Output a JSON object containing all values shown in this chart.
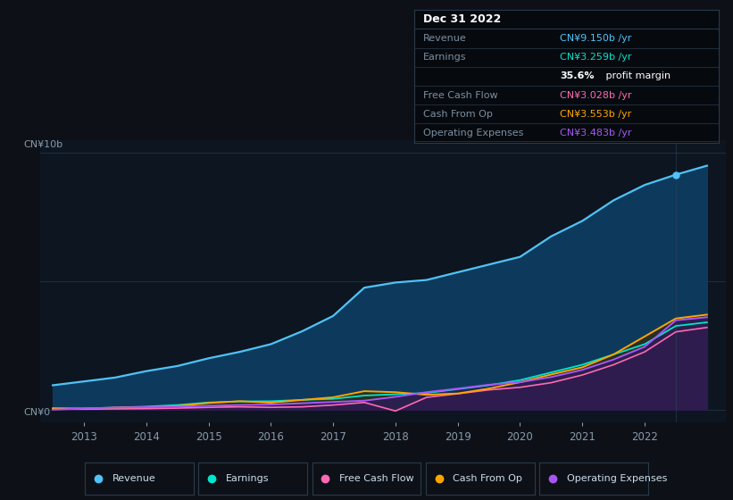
{
  "bg_color": "#0d1117",
  "plot_bg_color": "#0d1520",
  "years": [
    2012.5,
    2013.0,
    2013.5,
    2014.0,
    2014.5,
    2015.0,
    2015.5,
    2016.0,
    2016.5,
    2017.0,
    2017.5,
    2018.0,
    2018.5,
    2019.0,
    2019.5,
    2020.0,
    2020.5,
    2021.0,
    2021.5,
    2022.0,
    2022.5,
    2023.0
  ],
  "revenue": [
    0.95,
    1.1,
    1.25,
    1.5,
    1.7,
    2.0,
    2.25,
    2.55,
    3.05,
    3.65,
    4.75,
    4.95,
    5.05,
    5.35,
    5.65,
    5.95,
    6.75,
    7.35,
    8.15,
    8.75,
    9.15,
    9.5
  ],
  "earnings": [
    0.05,
    0.05,
    0.08,
    0.12,
    0.18,
    0.28,
    0.32,
    0.33,
    0.38,
    0.42,
    0.55,
    0.6,
    0.65,
    0.8,
    0.95,
    1.15,
    1.45,
    1.75,
    2.15,
    2.55,
    3.26,
    3.4
  ],
  "free_cash_flow": [
    0.02,
    0.02,
    0.03,
    0.04,
    0.06,
    0.09,
    0.11,
    0.09,
    0.11,
    0.18,
    0.28,
    -0.05,
    0.48,
    0.62,
    0.77,
    0.87,
    1.05,
    1.35,
    1.75,
    2.25,
    3.03,
    3.2
  ],
  "cash_from_op": [
    0.05,
    0.03,
    0.08,
    0.1,
    0.14,
    0.26,
    0.33,
    0.27,
    0.38,
    0.48,
    0.72,
    0.68,
    0.58,
    0.63,
    0.82,
    1.07,
    1.37,
    1.65,
    2.15,
    2.85,
    3.55,
    3.7
  ],
  "op_expenses": [
    0.0,
    0.05,
    0.08,
    0.1,
    0.12,
    0.15,
    0.18,
    0.2,
    0.25,
    0.3,
    0.35,
    0.5,
    0.68,
    0.82,
    0.97,
    1.07,
    1.27,
    1.55,
    1.95,
    2.45,
    3.48,
    3.6
  ],
  "revenue_color": "#4fc3f7",
  "earnings_color": "#00e5cc",
  "fcf_color": "#ff69b4",
  "cash_color": "#ffa500",
  "opex_color": "#a855f7",
  "xlim": [
    2012.3,
    2023.3
  ],
  "ylim": [
    -0.5,
    10.5
  ],
  "xticks": [
    2013,
    2014,
    2015,
    2016,
    2017,
    2018,
    2019,
    2020,
    2021,
    2022
  ],
  "ylabel": "CN¥10b",
  "y0label": "CN¥0",
  "infobox": {
    "date": "Dec 31 2022",
    "rows": [
      {
        "label": "Revenue",
        "value": "CN¥9.150b /yr",
        "vcolor": "#4fc3f7"
      },
      {
        "label": "Earnings",
        "value": "CN¥3.259b /yr",
        "vcolor": "#00e5cc"
      },
      {
        "label": "",
        "value": "35.6%",
        "vcolor": "#ffffff",
        "suffix": " profit margin"
      },
      {
        "label": "Free Cash Flow",
        "value": "CN¥3.028b /yr",
        "vcolor": "#ff69b4"
      },
      {
        "label": "Cash From Op",
        "value": "CN¥3.553b /yr",
        "vcolor": "#ffa500"
      },
      {
        "label": "Operating Expenses",
        "value": "CN¥3.483b /yr",
        "vcolor": "#a855f7"
      }
    ]
  },
  "legend": [
    {
      "label": "Revenue",
      "color": "#4fc3f7"
    },
    {
      "label": "Earnings",
      "color": "#00e5cc"
    },
    {
      "label": "Free Cash Flow",
      "color": "#ff69b4"
    },
    {
      "label": "Cash From Op",
      "color": "#ffa500"
    },
    {
      "label": "Operating Expenses",
      "color": "#a855f7"
    }
  ]
}
